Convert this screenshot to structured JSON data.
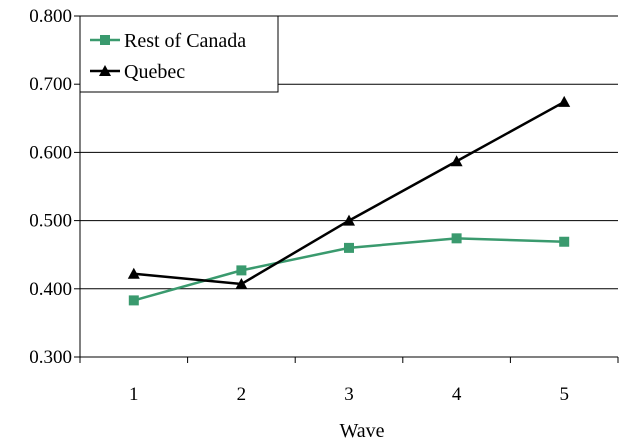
{
  "chart_data": {
    "type": "line",
    "title": "",
    "xlabel": "Wave",
    "ylabel": "",
    "categories": [
      "1",
      "2",
      "3",
      "4",
      "5"
    ],
    "ylim": [
      0.3,
      0.8
    ],
    "yticks": [
      "0.300",
      "0.400",
      "0.500",
      "0.600",
      "0.700",
      "0.800"
    ],
    "grid": "horizontal",
    "legend_position": "top-left",
    "series": [
      {
        "name": "Rest of Canada",
        "color": "#3a9a6e",
        "marker": "square",
        "values": [
          0.383,
          0.427,
          0.46,
          0.474,
          0.469
        ]
      },
      {
        "name": "Quebec",
        "color": "#000000",
        "marker": "triangle",
        "values": [
          0.422,
          0.407,
          0.5,
          0.587,
          0.674
        ]
      }
    ]
  }
}
